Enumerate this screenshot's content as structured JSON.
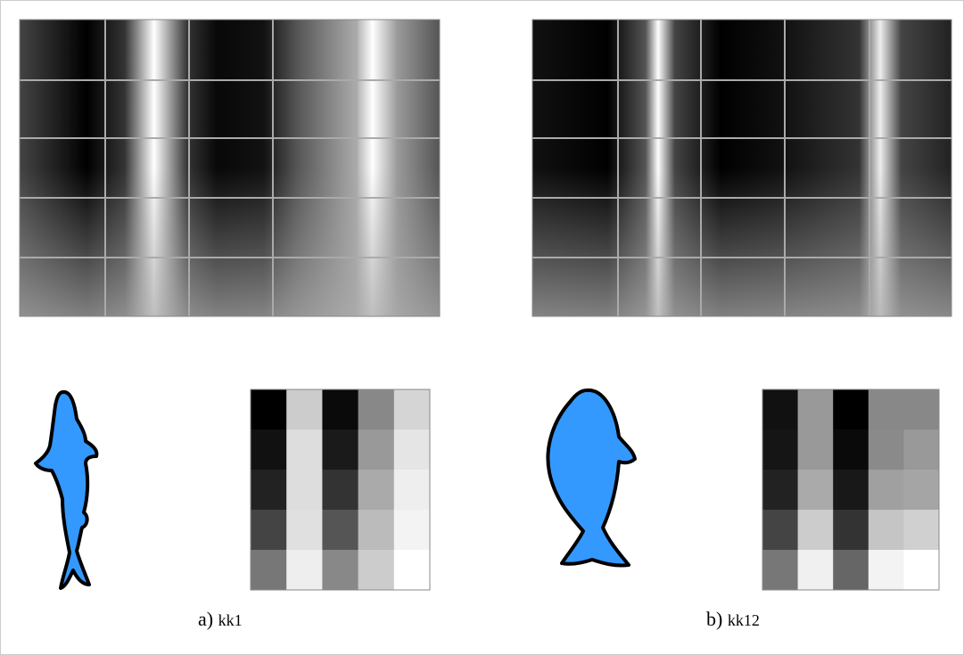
{
  "panels": [
    {
      "label": "a)",
      "name": "kk1"
    },
    {
      "label": "b)",
      "name": "kk12"
    }
  ]
}
